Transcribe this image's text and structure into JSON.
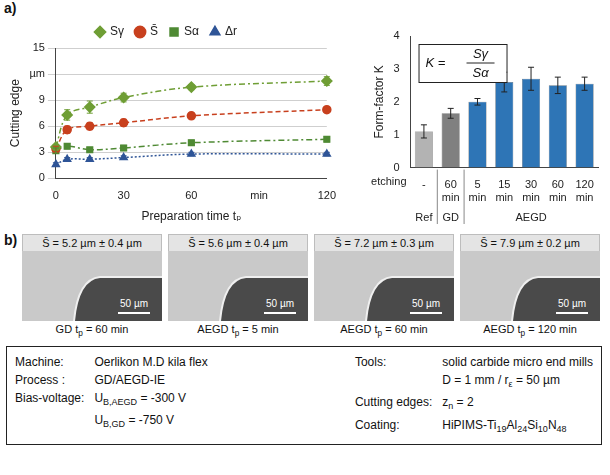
{
  "panel_labels": [
    "a)",
    "b)"
  ],
  "chart_data": [
    {
      "type": "line",
      "x_label": "Preparation time tₚ",
      "y_label": "Cutting edge",
      "x": [
        0,
        5,
        15,
        30,
        60,
        120
      ],
      "series": [
        {
          "name": "Sγ",
          "color": "#6f9e35",
          "marker": "diamond",
          "line_style": "dashdot",
          "values": [
            3.6,
            7.3,
            8.2,
            9.3,
            10.5,
            11.2
          ],
          "errors": [
            0.3,
            0.6,
            0.7,
            0.5,
            0.3,
            0.5
          ]
        },
        {
          "name": "S̄",
          "color": "#c8401e",
          "marker": "circle",
          "line_style": "dashed",
          "values": [
            3.4,
            5.6,
            6.0,
            6.4,
            7.2,
            7.9
          ],
          "errors": [
            0.3,
            0.4,
            0.4,
            0.4,
            0.3,
            0.2
          ]
        },
        {
          "name": "Sα",
          "color": "#4f8a34",
          "marker": "square",
          "line_style": "dashdot",
          "values": [
            3.2,
            3.7,
            3.3,
            3.5,
            4.1,
            4.5
          ],
          "errors": [
            0.3,
            0.3,
            0.2,
            0.3,
            0.3,
            0.3
          ]
        },
        {
          "name": "Δr",
          "color": "#2f5597",
          "marker": "triangle",
          "line_style": "dotted",
          "values": [
            1.6,
            2.2,
            2.2,
            2.4,
            2.8,
            2.8
          ],
          "errors": [
            0.2,
            0.2,
            0.2,
            0.2,
            0.2,
            0.2
          ]
        }
      ],
      "xlim": [
        0,
        120
      ],
      "xticks": [
        0,
        30,
        60,
        {
          "value": 90,
          "label": "min"
        },
        120
      ],
      "ylim": [
        0,
        15
      ],
      "yticks": [
        0,
        3,
        6,
        9,
        {
          "value": 12,
          "label": "µm"
        },
        15
      ],
      "grid": true,
      "legend": "top"
    },
    {
      "type": "bar",
      "y_label": "Form-factor K",
      "categories": [
        "-",
        "60 min",
        "5 min",
        "15 min",
        "30 min",
        "60 min",
        "120 min"
      ],
      "values": [
        1.1,
        1.65,
        2.0,
        2.6,
        2.7,
        2.5,
        2.55
      ],
      "errors": [
        0.2,
        0.15,
        0.1,
        0.3,
        0.35,
        0.25,
        0.2
      ],
      "colors": [
        "#b3b3b3",
        "#808080",
        "#2e75b6",
        "#2e75b6",
        "#2e75b6",
        "#2e75b6",
        "#2e75b6"
      ],
      "ylim": [
        0,
        4
      ],
      "yticks": [
        0,
        1,
        2,
        3,
        4
      ],
      "grid": false,
      "row_label": "etching",
      "groups": [
        {
          "label": "Ref",
          "span": 1
        },
        {
          "label": "GD",
          "span": 1
        },
        {
          "label": "AEGD",
          "span": 5
        }
      ],
      "formula": {
        "lhs": "K =",
        "numerator": "Sγ",
        "denominator": "Sα"
      }
    }
  ],
  "images": [
    {
      "label": "S̄ = 5.2 µm ± 0.4 µm",
      "caption": [
        "GD ",
        {
          "t": "t",
          "sub": "p"
        },
        " = 60 min"
      ],
      "scale_bar": "50 µm"
    },
    {
      "label": "S̄ = 5.6 µm ± 0.4 µm",
      "caption": [
        "AEGD ",
        {
          "t": "t",
          "sub": "p"
        },
        " = 5 min"
      ],
      "scale_bar": "50 µm"
    },
    {
      "label": "S̄ = 7.2 µm ± 0.3 µm",
      "caption": [
        "AEGD ",
        {
          "t": "t",
          "sub": "p"
        },
        " = 60 min"
      ],
      "scale_bar": "50 µm"
    },
    {
      "label": "S̄ = 7.9 µm ± 0.2 µm",
      "caption": [
        "AEGD ",
        {
          "t": "t",
          "sub": "p"
        },
        " = 120 min"
      ],
      "scale_bar": "50 µm"
    }
  ],
  "parameters": {
    "left": [
      {
        "key": "Machine:",
        "lines": [
          [
            "Oerlikon M.D kila flex"
          ]
        ]
      },
      {
        "key": "Process :",
        "lines": [
          [
            "GD/AEGD-IE"
          ]
        ]
      },
      {
        "key": "Bias-voltage:",
        "lines": [
          [
            {
              "t": "U",
              "sub": "B,AEGD"
            },
            " = -300 V"
          ],
          [
            {
              "t": "U",
              "sub": "B,GD"
            },
            " = -750 V"
          ]
        ]
      }
    ],
    "right": [
      {
        "key": "Tools:",
        "lines": [
          [
            "solid carbide micro end mills"
          ],
          [
            "D = 1 mm / ",
            {
              "t": "r",
              "sub": "ε"
            },
            " = 50 µm"
          ]
        ]
      },
      {
        "key": "Cutting edges:",
        "lines": [
          [
            {
              "t": "z",
              "sub": "n"
            },
            " = 2"
          ]
        ]
      },
      {
        "key": "Coating:",
        "lines": [
          [
            "HiPIMS-Ti",
            {
              "sub": "19"
            },
            "Al",
            {
              "sub": "24"
            },
            "Si",
            {
              "sub": "10"
            },
            "N",
            {
              "sub": "48"
            }
          ]
        ]
      }
    ]
  }
}
